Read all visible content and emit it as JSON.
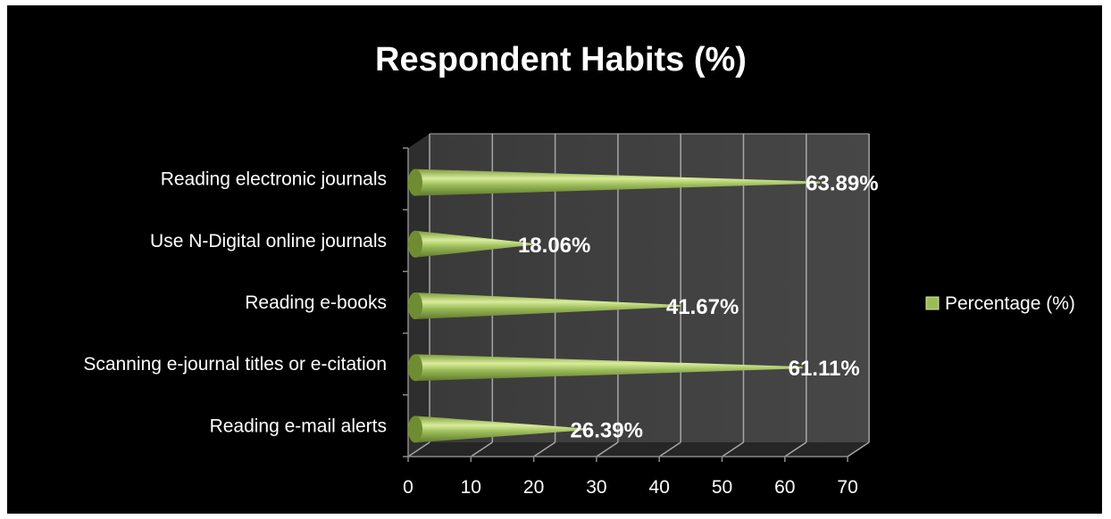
{
  "chart_data": {
    "type": "bar",
    "orientation": "horizontal",
    "title": "Respondent Habits (%)",
    "categories": [
      "Reading electronic journals",
      "Use N-Digital online journals",
      "Reading e-books",
      "Scanning e-journal titles or e-citation",
      "Reading e-mail alerts"
    ],
    "series": [
      {
        "name": "Percentage (%)",
        "values": [
          63.89,
          18.06,
          41.67,
          61.11,
          26.39
        ],
        "data_labels": [
          "63.89%",
          "18.06%",
          "41.67%",
          "61.11%",
          "26.39%"
        ]
      }
    ],
    "xlim": [
      0,
      70
    ],
    "x_ticks": [
      "0",
      "10",
      "20",
      "30",
      "40",
      "50",
      "60",
      "70"
    ],
    "grid": true,
    "legend_position": "right",
    "colors": {
      "background": "#000000",
      "bar": "#9bbb59",
      "bar_highlight": "#d8ec9a",
      "wall": "#3f3f3f",
      "grid": "#a6a6a6",
      "text": "#ffffff"
    }
  }
}
